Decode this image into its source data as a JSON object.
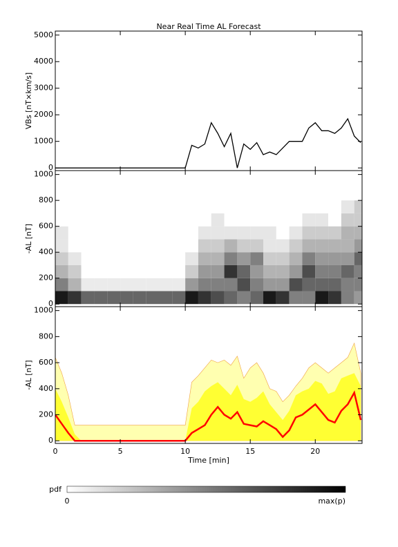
{
  "chart_data": [
    {
      "type": "line",
      "title": "Near Real Time AL Forecast",
      "ylabel": "VBs [nT×km/s]",
      "x": [
        0,
        0.5,
        1,
        1.5,
        2,
        2.5,
        3,
        3.5,
        4,
        4.5,
        5,
        5.5,
        6,
        6.5,
        7,
        7.5,
        8,
        8.5,
        9,
        9.5,
        10,
        10.5,
        11,
        11.5,
        12,
        12.5,
        13,
        13.5,
        14,
        14.5,
        15,
        15.5,
        16,
        16.5,
        17,
        17.5,
        18,
        18.5,
        19,
        19.5,
        20,
        20.5,
        21,
        21.5,
        22,
        22.5,
        23,
        23.5
      ],
      "series": [
        {
          "color": "#000000",
          "values": [
            0,
            0,
            0,
            0,
            0,
            0,
            0,
            0,
            0,
            0,
            0,
            0,
            0,
            0,
            0,
            0,
            0,
            0,
            0,
            0,
            0,
            850,
            750,
            900,
            1700,
            1300,
            800,
            1300,
            0,
            900,
            700,
            950,
            500,
            600,
            500,
            750,
            1000,
            1000,
            1000,
            1500,
            1700,
            1400,
            1400,
            1300,
            1500,
            1850,
            1200,
            950
          ]
        }
      ],
      "xlim": [
        0,
        23.6
      ],
      "ylim": [
        -100,
        5150
      ],
      "yticks": [
        0,
        1000,
        2000,
        3000,
        4000,
        5000
      ]
    },
    {
      "type": "heatmap",
      "ylabel": "-AL [nT]",
      "xbins": [
        0,
        1,
        2,
        3,
        4,
        5,
        6,
        7,
        8,
        9,
        10,
        11,
        12,
        13,
        14,
        15,
        16,
        17,
        18,
        19,
        20,
        21,
        22,
        23,
        23.6
      ],
      "ybins": [
        0,
        100,
        200,
        300,
        400,
        500,
        600,
        700,
        800
      ],
      "z": [
        [
          0.9,
          0.5,
          0.3,
          0.2,
          0.1,
          0.1,
          0,
          0
        ],
        [
          0.8,
          0.3,
          0.2,
          0.1,
          0,
          0,
          0,
          0
        ],
        [
          0.6,
          0.08,
          0,
          0,
          0,
          0,
          0,
          0
        ],
        [
          0.6,
          0.08,
          0,
          0,
          0,
          0,
          0,
          0
        ],
        [
          0.6,
          0.08,
          0,
          0,
          0,
          0,
          0,
          0
        ],
        [
          0.6,
          0.08,
          0,
          0,
          0,
          0,
          0,
          0
        ],
        [
          0.6,
          0.08,
          0,
          0,
          0,
          0,
          0,
          0
        ],
        [
          0.6,
          0.08,
          0,
          0,
          0,
          0,
          0,
          0
        ],
        [
          0.6,
          0.08,
          0,
          0,
          0,
          0,
          0,
          0
        ],
        [
          0.6,
          0.08,
          0,
          0,
          0,
          0,
          0,
          0
        ],
        [
          0.9,
          0.4,
          0.2,
          0.1,
          0,
          0,
          0,
          0
        ],
        [
          0.8,
          0.5,
          0.4,
          0.3,
          0.2,
          0.1,
          0,
          0
        ],
        [
          0.7,
          0.5,
          0.4,
          0.3,
          0.2,
          0.1,
          0.1,
          0
        ],
        [
          0.6,
          0.5,
          0.8,
          0.5,
          0.3,
          0.1,
          0,
          0
        ],
        [
          0.5,
          0.7,
          0.6,
          0.4,
          0.2,
          0.1,
          0,
          0
        ],
        [
          0.6,
          0.5,
          0.4,
          0.5,
          0.2,
          0.1,
          0,
          0
        ],
        [
          0.9,
          0.4,
          0.3,
          0.2,
          0.1,
          0.1,
          0,
          0
        ],
        [
          0.8,
          0.4,
          0.3,
          0.2,
          0.1,
          0,
          0,
          0
        ],
        [
          0.5,
          0.7,
          0.4,
          0.3,
          0.2,
          0.1,
          0,
          0
        ],
        [
          0.5,
          0.6,
          0.7,
          0.5,
          0.3,
          0.2,
          0.1,
          0
        ],
        [
          0.9,
          0.6,
          0.5,
          0.4,
          0.3,
          0.2,
          0.1,
          0
        ],
        [
          0.8,
          0.6,
          0.5,
          0.4,
          0.3,
          0.2,
          0,
          0
        ],
        [
          0.5,
          0.5,
          0.6,
          0.4,
          0.3,
          0.3,
          0.2,
          0.1
        ],
        [
          0.4,
          0.5,
          0.5,
          0.6,
          0.4,
          0.3,
          0.2,
          0.2
        ]
      ],
      "colorbar": {
        "label": "pdf",
        "min_label": "0",
        "max_label": "max(p)"
      },
      "xlim": [
        0,
        23.6
      ],
      "ylim": [
        -20,
        1030
      ],
      "yticks": [
        0,
        200,
        400,
        600,
        800,
        1000
      ]
    },
    {
      "type": "area",
      "ylabel": "-AL [nT]",
      "xlabel": "Time [min]",
      "x": [
        0,
        0.5,
        1,
        1.5,
        2,
        2.5,
        3,
        3.5,
        4,
        4.5,
        5,
        5.5,
        6,
        6.5,
        7,
        7.5,
        8,
        8.5,
        9,
        9.5,
        10,
        10.5,
        11,
        11.5,
        12,
        12.5,
        13,
        13.5,
        14,
        14.5,
        15,
        15.5,
        16,
        16.5,
        17,
        17.5,
        18,
        18.5,
        19,
        19.5,
        20,
        20.5,
        21,
        21.5,
        22,
        22.5,
        23,
        23.5
      ],
      "series": [
        {
          "color": "#ffffb0",
          "values": [
            640,
            520,
            350,
            120,
            120,
            120,
            120,
            120,
            120,
            120,
            120,
            120,
            120,
            120,
            120,
            120,
            120,
            120,
            120,
            120,
            120,
            450,
            500,
            560,
            620,
            600,
            620,
            580,
            650,
            480,
            560,
            600,
            520,
            400,
            380,
            300,
            350,
            420,
            480,
            560,
            600,
            560,
            520,
            560,
            600,
            640,
            750,
            520
          ]
        },
        {
          "color": "#ffff33",
          "values": [
            400,
            300,
            180,
            50,
            0,
            0,
            0,
            0,
            0,
            0,
            0,
            0,
            0,
            0,
            0,
            0,
            0,
            0,
            0,
            0,
            0,
            250,
            300,
            380,
            420,
            450,
            400,
            350,
            430,
            320,
            300,
            330,
            380,
            280,
            220,
            160,
            230,
            350,
            380,
            400,
            460,
            440,
            360,
            380,
            480,
            500,
            520,
            420
          ]
        },
        {
          "color": "#ff0000",
          "values": [
            200,
            130,
            60,
            0,
            0,
            0,
            0,
            0,
            0,
            0,
            0,
            0,
            0,
            0,
            0,
            0,
            0,
            0,
            0,
            0,
            0,
            60,
            90,
            120,
            200,
            260,
            200,
            170,
            220,
            130,
            120,
            110,
            150,
            120,
            90,
            30,
            80,
            180,
            200,
            240,
            280,
            220,
            160,
            140,
            230,
            280,
            370,
            160
          ]
        }
      ],
      "xlim": [
        0,
        23.6
      ],
      "ylim": [
        -20,
        1030
      ],
      "yticks": [
        0,
        200,
        400,
        600,
        800,
        1000
      ],
      "xticks": [
        0,
        5,
        10,
        15,
        20
      ]
    }
  ]
}
